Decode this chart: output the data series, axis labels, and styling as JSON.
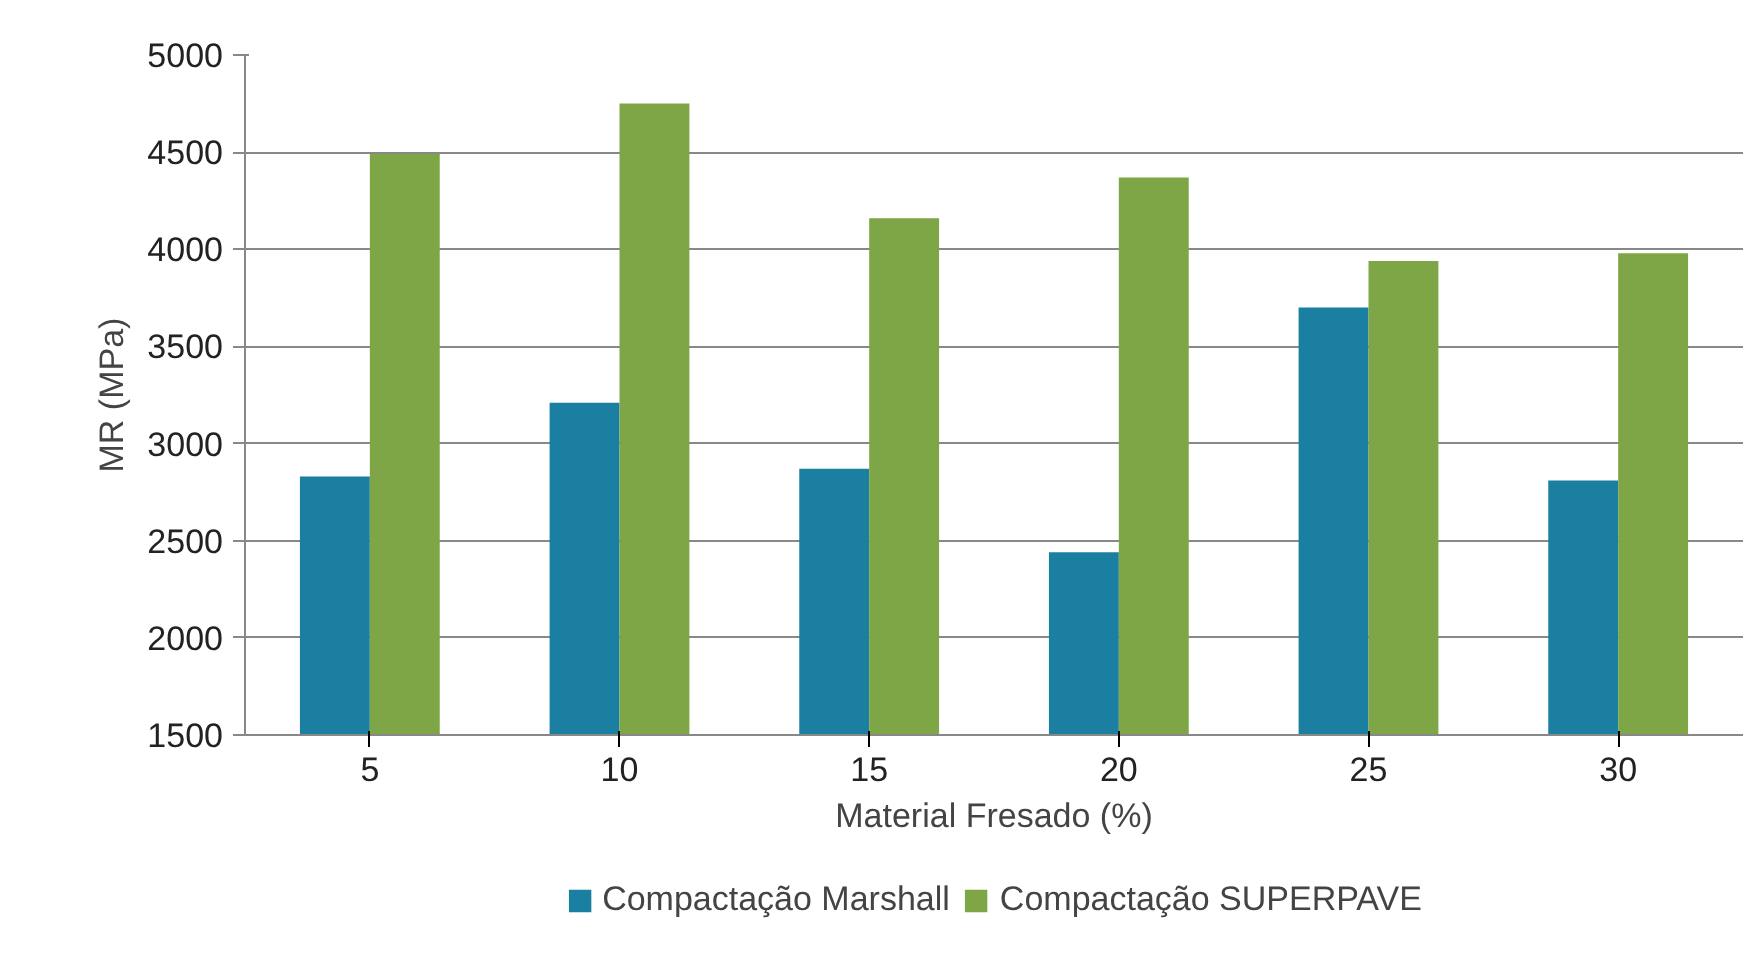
{
  "chart_data": {
    "type": "bar",
    "xlabel": "Material Fresado (%)",
    "ylabel": "MR (MPa)",
    "categories": [
      "5",
      "10",
      "15",
      "20",
      "25",
      "30"
    ],
    "series": [
      {
        "name": "Compactação Marshall",
        "color": "#1a7fa0",
        "values": [
          2830,
          3210,
          2870,
          2440,
          3700,
          2810
        ]
      },
      {
        "name": "Compactação SUPERPAVE",
        "color": "#7fa646",
        "values": [
          4490,
          4750,
          4160,
          4370,
          3940,
          3980
        ]
      }
    ],
    "ylim": [
      1500,
      5000
    ],
    "yticks": [
      1500,
      2000,
      2500,
      3000,
      3500,
      4000,
      4500,
      5000
    ],
    "grid": "y",
    "legend": "bottom"
  }
}
